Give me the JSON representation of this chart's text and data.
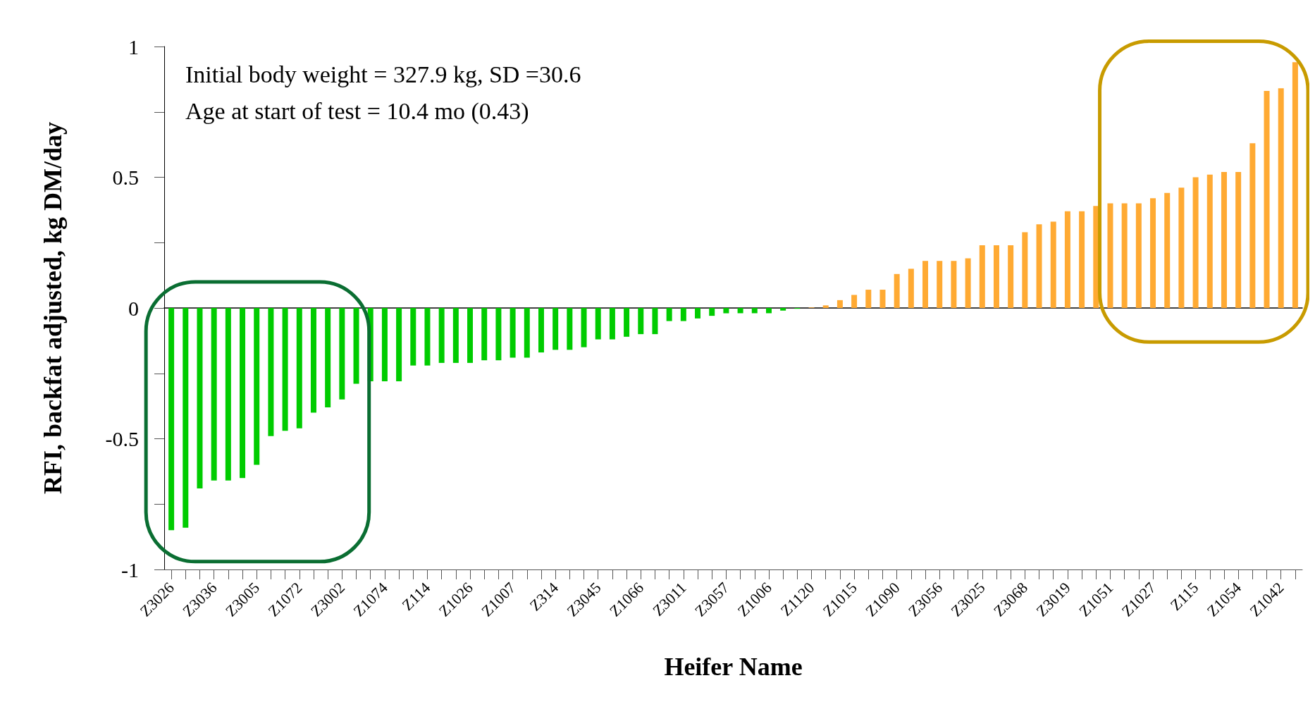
{
  "chart_data": {
    "type": "bar",
    "xlabel": "Heifer Name",
    "ylabel": "RFI, backfat adjusted, kg DM/day",
    "annotations": [
      "Initial body weight = 327.9 kg, SD =30.6",
      "Age at start of test = 10.4 mo (0.43)"
    ],
    "categories": [
      "Z3026",
      null,
      null,
      "Z3036",
      null,
      null,
      "Z3005",
      null,
      null,
      "Z1072",
      null,
      null,
      "Z3002",
      null,
      null,
      "Z1074",
      null,
      null,
      "Z114",
      null,
      null,
      "Z1026",
      null,
      null,
      "Z1007",
      null,
      null,
      "Z314",
      null,
      null,
      "Z3045",
      null,
      null,
      "Z1066",
      null,
      null,
      "Z3011",
      null,
      null,
      "Z3057",
      null,
      null,
      "Z1006",
      null,
      null,
      "Z1120",
      null,
      null,
      "Z1015",
      null,
      null,
      "Z1090",
      null,
      null,
      "Z3056",
      null,
      null,
      "Z3025",
      null,
      null,
      "Z3068",
      null,
      null,
      "Z3019",
      null,
      null,
      "Z1051",
      null,
      null,
      "Z1027",
      null,
      null,
      "Z115",
      null,
      null,
      "Z1054",
      null,
      null,
      "Z1042",
      null
    ],
    "values": [
      -0.85,
      -0.84,
      -0.69,
      -0.66,
      -0.66,
      -0.65,
      -0.6,
      -0.49,
      -0.47,
      -0.46,
      -0.4,
      -0.38,
      -0.35,
      -0.29,
      -0.28,
      -0.28,
      -0.28,
      -0.22,
      -0.22,
      -0.21,
      -0.21,
      -0.21,
      -0.2,
      -0.2,
      -0.19,
      -0.19,
      -0.17,
      -0.16,
      -0.16,
      -0.15,
      -0.12,
      -0.12,
      -0.11,
      -0.1,
      -0.1,
      -0.05,
      -0.05,
      -0.04,
      -0.03,
      -0.02,
      -0.02,
      -0.02,
      -0.02,
      -0.01,
      -0.003,
      0.002,
      0.01,
      0.03,
      0.05,
      0.07,
      0.07,
      0.13,
      0.15,
      0.18,
      0.18,
      0.18,
      0.19,
      0.24,
      0.24,
      0.24,
      0.29,
      0.32,
      0.33,
      0.37,
      0.37,
      0.39,
      0.4,
      0.4,
      0.4,
      0.42,
      0.44,
      0.46,
      0.5,
      0.51,
      0.52,
      0.52,
      0.63,
      0.83,
      0.84,
      0.94
    ],
    "colors": [
      "#00cc00",
      "#00cc00",
      "#00cc00",
      "#00cc00",
      "#00cc00",
      "#00cc00",
      "#00cc00",
      "#00cc00",
      "#00cc00",
      "#00cc00",
      "#00cc00",
      "#00cc00",
      "#00cc00",
      "#00cc00",
      "#00cc00",
      "#00cc00",
      "#00cc00",
      "#00cc00",
      "#00cc00",
      "#00cc00",
      "#00cc00",
      "#00cc00",
      "#00cc00",
      "#00cc00",
      "#00cc00",
      "#00cc00",
      "#00cc00",
      "#00cc00",
      "#00cc00",
      "#00cc00",
      "#00cc00",
      "#00cc00",
      "#00cc00",
      "#00cc00",
      "#00cc00",
      "#00cc00",
      "#00cc00",
      "#00cc00",
      "#00cc00",
      "#00cc00",
      "#00cc00",
      "#00cc00",
      "#00cc00",
      "#00cc00",
      "#00cc00",
      "#ffaa33",
      "#ffaa33",
      "#ffaa33",
      "#ffaa33",
      "#ffaa33",
      "#ffaa33",
      "#ffaa33",
      "#ffaa33",
      "#ffaa33",
      "#ffaa33",
      "#ffaa33",
      "#ffaa33",
      "#ffaa33",
      "#ffaa33",
      "#ffaa33",
      "#ffaa33",
      "#ffaa33",
      "#ffaa33",
      "#ffaa33",
      "#ffaa33",
      "#ffaa33",
      "#ffaa33",
      "#ffaa33",
      "#ffaa33",
      "#ffaa33",
      "#ffaa33",
      "#ffaa33",
      "#ffaa33",
      "#ffaa33",
      "#ffaa33",
      "#ffaa33",
      "#ffaa33",
      "#ffaa33",
      "#ffaa33",
      "#ffaa33"
    ],
    "ylim": [
      -1,
      1
    ],
    "yticks": [
      -1,
      {
        "value": -0.75,
        "label": null
      },
      -0.5,
      {
        "value": -0.25,
        "label": null
      },
      0,
      {
        "value": 0.25,
        "label": null
      },
      0.5,
      {
        "value": 0.75,
        "label": null
      },
      1
    ]
  }
}
